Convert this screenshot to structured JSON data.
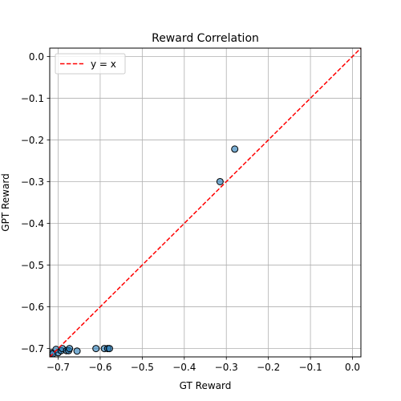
{
  "chart_data": {
    "type": "scatter",
    "title": "Reward Correlation",
    "xlabel": "GT Reward",
    "ylabel": "GPT Reward",
    "xlim": [
      -0.72,
      0.02
    ],
    "ylim": [
      -0.72,
      0.02
    ],
    "xticks": [
      -0.7,
      -0.6,
      -0.5,
      -0.4,
      -0.3,
      -0.2,
      -0.1,
      0.0
    ],
    "yticks": [
      -0.7,
      -0.6,
      -0.5,
      -0.4,
      -0.3,
      -0.2,
      -0.1,
      0.0
    ],
    "xtick_labels": [
      "−0.7",
      "−0.6",
      "−0.5",
      "−0.4",
      "−0.3",
      "−0.2",
      "−0.1",
      "0.0"
    ],
    "ytick_labels": [
      "−0.7",
      "−0.6",
      "−0.5",
      "−0.4",
      "−0.3",
      "−0.2",
      "−0.1",
      "0.0"
    ],
    "grid": true,
    "legend_position": "top-left",
    "series": [
      {
        "kind": "scatter",
        "color": "#1f77b4",
        "points": [
          {
            "x": -0.715,
            "y": -0.71
          },
          {
            "x": -0.712,
            "y": -0.712
          },
          {
            "x": -0.705,
            "y": -0.702
          },
          {
            "x": -0.7,
            "y": -0.71
          },
          {
            "x": -0.693,
            "y": -0.705
          },
          {
            "x": -0.69,
            "y": -0.7
          },
          {
            "x": -0.68,
            "y": -0.705
          },
          {
            "x": -0.675,
            "y": -0.705
          },
          {
            "x": -0.673,
            "y": -0.7
          },
          {
            "x": -0.655,
            "y": -0.706
          },
          {
            "x": -0.61,
            "y": -0.7
          },
          {
            "x": -0.59,
            "y": -0.7
          },
          {
            "x": -0.582,
            "y": -0.7
          },
          {
            "x": -0.578,
            "y": -0.7
          },
          {
            "x": -0.315,
            "y": -0.3
          },
          {
            "x": -0.28,
            "y": -0.222
          }
        ]
      },
      {
        "kind": "line",
        "name": "y = x",
        "color": "#ff0000",
        "dash": "dashed",
        "points": [
          {
            "x": -0.72,
            "y": -0.72
          },
          {
            "x": 0.02,
            "y": 0.02
          }
        ]
      }
    ]
  }
}
